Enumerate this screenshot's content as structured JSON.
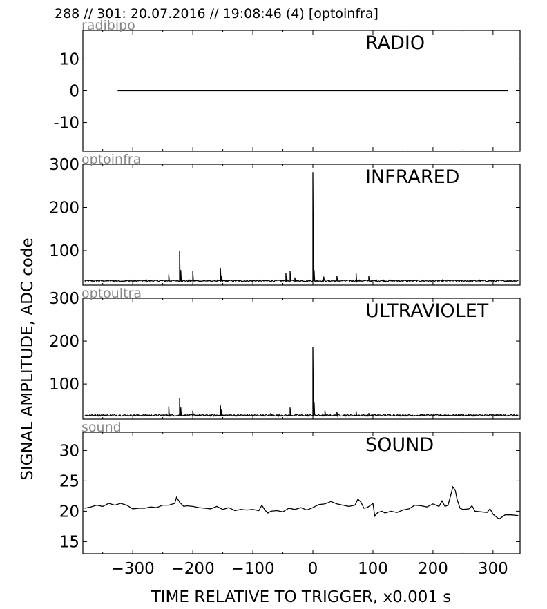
{
  "header": "288 // 301:   20.07.2016 // 19:08:46 (4)  [optoinfra]",
  "ylabel": "SIGNAL AMPLITUDE,  ADC code",
  "xlabel": "TIME RELATIVE TO TRIGGER,   x0.001 s",
  "chart_data": [
    {
      "type": "line",
      "tag": "radibipo",
      "title": "RADIO",
      "xlim": [
        -383,
        345
      ],
      "ylim": [
        -19,
        19
      ],
      "yticks": [
        -10,
        0,
        10
      ],
      "ytick_labels": [
        "-10",
        "0",
        "10"
      ],
      "series": [
        {
          "x": [
            -325,
            325
          ],
          "y": [
            0,
            0
          ]
        }
      ]
    },
    {
      "type": "line",
      "tag": "optoinfra",
      "title": "INFRARED",
      "xlim": [
        -383,
        345
      ],
      "ylim": [
        20,
        300
      ],
      "yticks": [
        100,
        200,
        300
      ],
      "ytick_labels": [
        "100",
        "200",
        "300"
      ],
      "series": [
        {
          "baseline": 30,
          "range": [
            -380,
            342
          ],
          "peaks": [
            [
              -240,
              45
            ],
            [
              -222,
              100
            ],
            [
              -220,
              55
            ],
            [
              -200,
              52
            ],
            [
              -154,
              60
            ],
            [
              -152,
              42
            ],
            [
              -45,
              48
            ],
            [
              -38,
              53
            ],
            [
              -30,
              38
            ],
            [
              0,
              282
            ],
            [
              2,
              55
            ],
            [
              18,
              40
            ],
            [
              40,
              42
            ],
            [
              72,
              48
            ],
            [
              93,
              42
            ]
          ]
        }
      ]
    },
    {
      "type": "line",
      "tag": "optoultra",
      "title": "ULTRAVIOLET",
      "xlim": [
        -383,
        345
      ],
      "ylim": [
        18,
        300
      ],
      "yticks": [
        100,
        200,
        300
      ],
      "ytick_labels": [
        "100",
        "200",
        "300"
      ],
      "series": [
        {
          "baseline": 27,
          "range": [
            -380,
            342
          ],
          "peaks": [
            [
              -240,
              48
            ],
            [
              -222,
              68
            ],
            [
              -220,
              45
            ],
            [
              -200,
              38
            ],
            [
              -154,
              50
            ],
            [
              -152,
              40
            ],
            [
              -70,
              33
            ],
            [
              -38,
              45
            ],
            [
              0,
              186
            ],
            [
              2,
              58
            ],
            [
              20,
              38
            ],
            [
              40,
              35
            ],
            [
              72,
              37
            ],
            [
              93,
              32
            ]
          ]
        }
      ]
    },
    {
      "type": "line",
      "tag": "sound",
      "title": "SOUND",
      "xlim": [
        -383,
        345
      ],
      "ylim": [
        13,
        33
      ],
      "yticks": [
        15,
        20,
        25,
        30
      ],
      "ytick_labels": [
        "15",
        "20",
        "25",
        "30"
      ],
      "xticks": [
        -300,
        -200,
        -100,
        0,
        100,
        200,
        300
      ],
      "xtick_labels": [
        "−300",
        "−200",
        "−100",
        "0",
        "100",
        "200",
        "300"
      ],
      "series": [
        {
          "x": [
            -380,
            -370,
            -360,
            -350,
            -340,
            -330,
            -320,
            -310,
            -300,
            -290,
            -280,
            -270,
            -260,
            -250,
            -240,
            -230,
            -227,
            -222,
            -215,
            -210,
            -200,
            -190,
            -180,
            -170,
            -160,
            -150,
            -140,
            -130,
            -120,
            -110,
            -100,
            -90,
            -85,
            -80,
            -75,
            -70,
            -60,
            -50,
            -40,
            -30,
            -20,
            -10,
            0,
            10,
            20,
            30,
            40,
            50,
            60,
            70,
            75,
            80,
            85,
            90,
            95,
            100,
            103,
            108,
            115,
            120,
            130,
            140,
            150,
            160,
            170,
            180,
            190,
            200,
            210,
            215,
            220,
            225,
            230,
            233,
            237,
            240,
            245,
            250,
            260,
            265,
            270,
            280,
            290,
            295,
            300,
            310,
            320,
            330,
            342
          ],
          "y": [
            20.5,
            20.7,
            21.0,
            20.8,
            21.3,
            21.0,
            21.3,
            21.0,
            20.4,
            20.5,
            20.5,
            20.7,
            20.6,
            21.0,
            21.0,
            21.3,
            22.3,
            21.5,
            20.8,
            20.9,
            20.8,
            20.6,
            20.5,
            20.4,
            20.8,
            20.3,
            20.6,
            20.1,
            20.3,
            20.2,
            20.3,
            20.1,
            21.0,
            20.2,
            19.7,
            20.0,
            20.1,
            19.9,
            20.5,
            20.3,
            20.6,
            20.2,
            20.6,
            21.1,
            21.2,
            21.6,
            21.2,
            21.0,
            20.8,
            21.0,
            22.0,
            21.5,
            20.5,
            20.6,
            20.9,
            21.3,
            19.2,
            19.8,
            20.0,
            19.7,
            20.0,
            19.8,
            20.2,
            20.4,
            21.0,
            20.9,
            20.7,
            21.2,
            20.8,
            21.7,
            20.8,
            21.0,
            22.8,
            24.0,
            23.5,
            22.0,
            20.5,
            20.3,
            20.4,
            20.9,
            20.0,
            19.9,
            19.8,
            20.4,
            19.5,
            18.7,
            19.4,
            19.4,
            19.3
          ]
        }
      ]
    }
  ]
}
